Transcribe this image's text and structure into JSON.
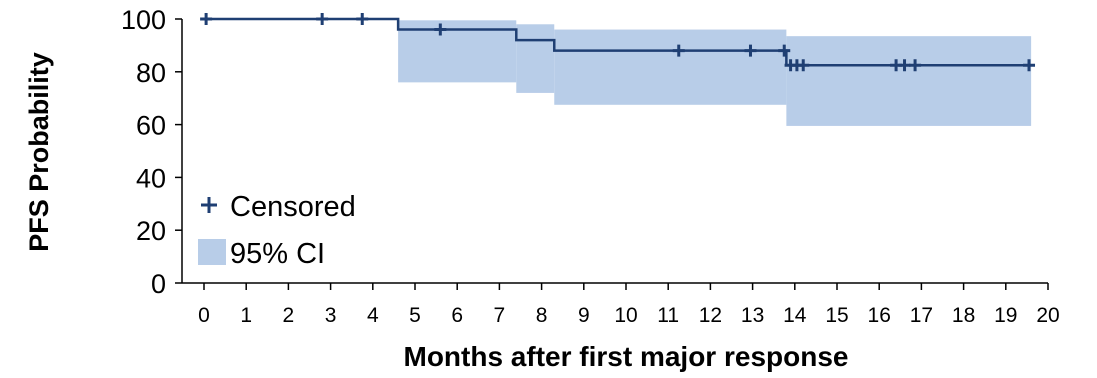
{
  "chart_data": {
    "type": "line",
    "title": "",
    "xlabel": "Months after first major response",
    "ylabel": "PFS Probability",
    "xlim": [
      0,
      20
    ],
    "ylim": [
      0,
      100
    ],
    "x_ticks": [
      0,
      1,
      2,
      3,
      4,
      5,
      6,
      7,
      8,
      9,
      10,
      11,
      12,
      13,
      14,
      15,
      16,
      17,
      18,
      19,
      20
    ],
    "y_ticks": [
      0,
      20,
      40,
      60,
      80,
      100
    ],
    "grid": false,
    "legend_position": "bottom-left",
    "series": [
      {
        "kind": "step",
        "x": [
          0,
          4.6,
          7.4,
          8.3,
          13.8,
          19.6
        ],
        "y": [
          100,
          96,
          92,
          88,
          82.5,
          82.5
        ]
      },
      {
        "kind": "censored",
        "name": "Censored",
        "x": [
          0.05,
          2.8,
          3.75,
          5.6,
          11.25,
          12.95,
          13.75,
          13.9,
          14.05,
          14.2,
          16.4,
          16.6,
          16.85,
          19.55
        ],
        "y": [
          100,
          100,
          100,
          96,
          88,
          88,
          88,
          82.5,
          82.5,
          82.5,
          82.5,
          82.5,
          82.5,
          82.5
        ]
      },
      {
        "kind": "ci_band",
        "name": "95% CI",
        "segments": [
          {
            "x0": 4.6,
            "x1": 7.4,
            "lower": 76,
            "upper": 99.5
          },
          {
            "x0": 7.4,
            "x1": 8.3,
            "lower": 72,
            "upper": 98
          },
          {
            "x0": 8.3,
            "x1": 13.8,
            "lower": 67.5,
            "upper": 96
          },
          {
            "x0": 13.8,
            "x1": 19.6,
            "lower": 59.5,
            "upper": 93.5
          }
        ]
      }
    ],
    "colors": {
      "line": "#1f3f73",
      "marker": "#1f3f73",
      "ci_fill": "#b8cde8",
      "axis": "#000000"
    }
  }
}
